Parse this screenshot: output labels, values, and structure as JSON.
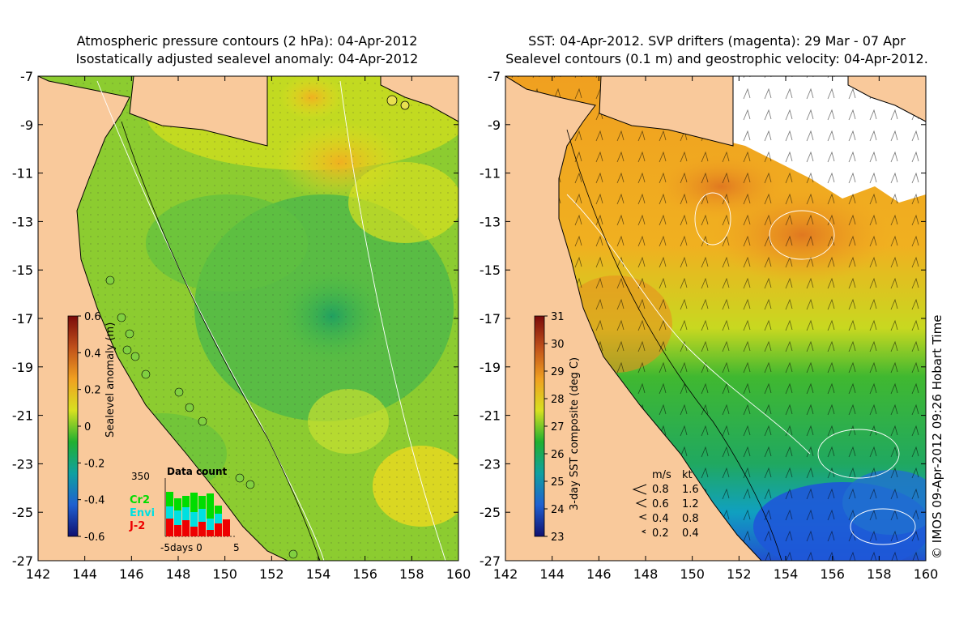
{
  "left_panel": {
    "title_line1": "Atmospheric pressure contours (2 hPa): 04-Apr-2012",
    "title_line2": "Isostatically adjusted sealevel anomaly: 04-Apr-2012",
    "colorbar": {
      "label": "Sealevel anomaly (m)",
      "ticks": [
        "0.6",
        "0.4",
        "0.2",
        "0",
        "-0.2",
        "-0.4",
        "-0.6"
      ],
      "colors": [
        "#7a0a0a",
        "#c0501a",
        "#f0a020",
        "#d8e020",
        "#20b030",
        "#10a0a0",
        "#2060d0",
        "#101070"
      ]
    },
    "data_count": {
      "title": "Data count",
      "ymax_label": "350",
      "x_label": "-5days 0",
      "x_end_label": "5",
      "legend": [
        "Cr2",
        "Envi",
        "J-2"
      ],
      "legend_colors": [
        "#00dd00",
        "#00e0e0",
        "#ee0000"
      ]
    }
  },
  "right_panel": {
    "title_line1": "SST: 04-Apr-2012. SVP drifters (magenta): 29 Mar - 07 Apr",
    "title_line2": "Sealevel contours (0.1 m) and geostrophic velocity: 04-Apr-2012.",
    "colorbar": {
      "label": "3-day SST composite (deg C)",
      "ticks": [
        "31",
        "30",
        "29",
        "28",
        "27",
        "26",
        "25",
        "24",
        "23"
      ],
      "colors": [
        "#7a0a0a",
        "#c0501a",
        "#f0a020",
        "#d8e020",
        "#20b030",
        "#10a0a0",
        "#2060d0",
        "#101070"
      ]
    },
    "velocity_legend": {
      "header_ms": "m/s",
      "header_kt": "kt",
      "rows": [
        {
          "ms": "0.8",
          "kt": "1.6"
        },
        {
          "ms": "0.6",
          "kt": "1.2"
        },
        {
          "ms": "0.4",
          "kt": "0.8"
        },
        {
          "ms": "0.2",
          "kt": "0.4"
        }
      ]
    }
  },
  "axes": {
    "x_ticks": [
      "142",
      "144",
      "146",
      "148",
      "150",
      "152",
      "154",
      "156",
      "158",
      "160"
    ],
    "y_ticks": [
      "-7",
      "-9",
      "-11",
      "-13",
      "-15",
      "-17",
      "-19",
      "-21",
      "-23",
      "-25",
      "-27"
    ]
  },
  "credit": "© IMOS 09-Apr-2012 09:26 Hobart Time",
  "colors": {
    "land": "#f9c99b",
    "white_cloud": "#ffffff"
  }
}
